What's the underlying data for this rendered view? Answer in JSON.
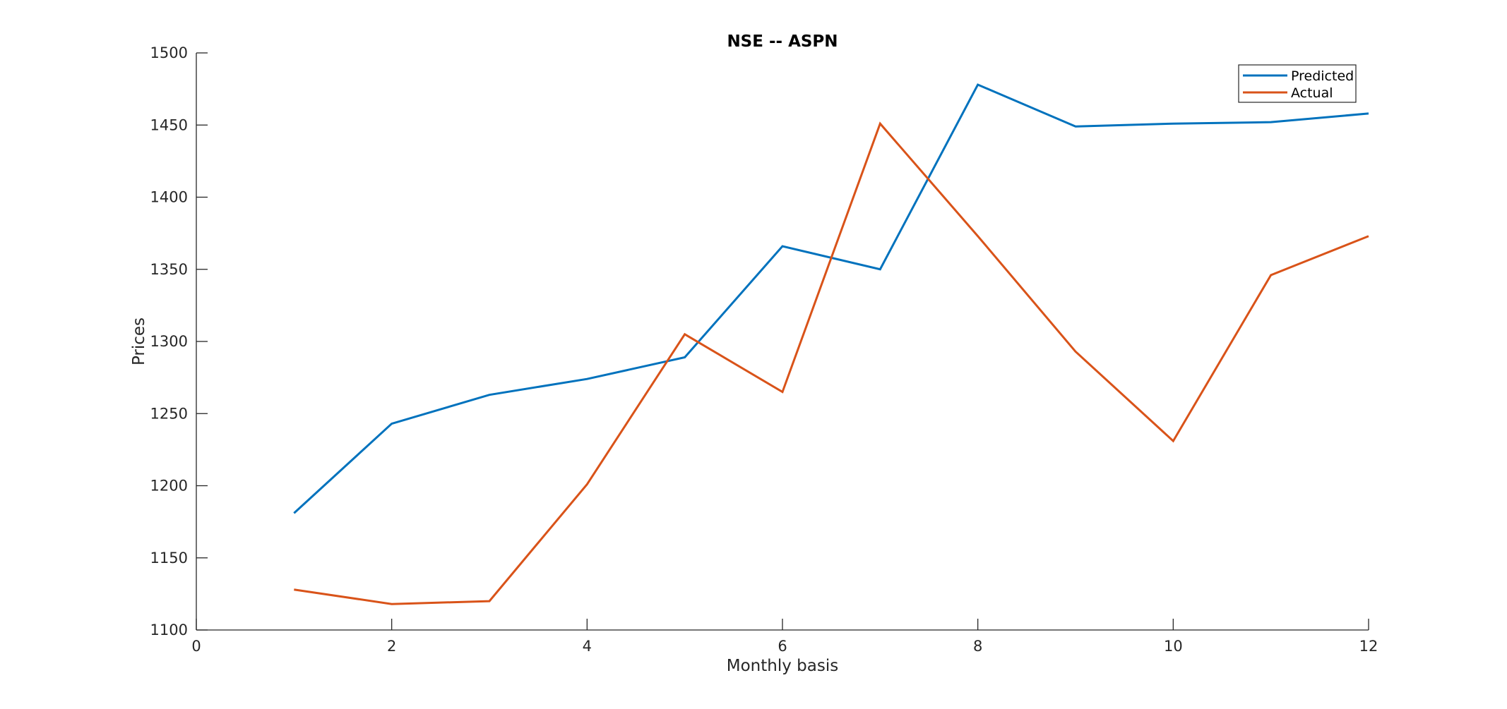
{
  "chart_data": {
    "type": "line",
    "title": "NSE -- ASPN",
    "xlabel": "Monthly basis",
    "ylabel": "Prices",
    "xlim": [
      0,
      12
    ],
    "ylim": [
      1100,
      1500
    ],
    "xticks": [
      "0",
      "2",
      "4",
      "6",
      "8",
      "10",
      "12"
    ],
    "yticks": [
      "1100",
      "1150",
      "1200",
      "1250",
      "1300",
      "1350",
      "1400",
      "1450",
      "1500"
    ],
    "x": [
      1,
      2,
      3,
      4,
      5,
      6,
      7,
      8,
      9,
      10,
      11,
      12
    ],
    "series": [
      {
        "name": "Predicted",
        "color": "#0072BD",
        "values": [
          1181,
          1243,
          1263,
          1274,
          1289,
          1366,
          1350,
          1478,
          1449,
          1451,
          1452,
          1458
        ]
      },
      {
        "name": "Actual",
        "color": "#D95319",
        "values": [
          1128,
          1118,
          1120,
          1201,
          1305,
          1265,
          1451,
          1373,
          1293,
          1231,
          1346,
          1373
        ]
      }
    ],
    "grid": false,
    "legend_position": "top-right",
    "axes_box": false
  }
}
